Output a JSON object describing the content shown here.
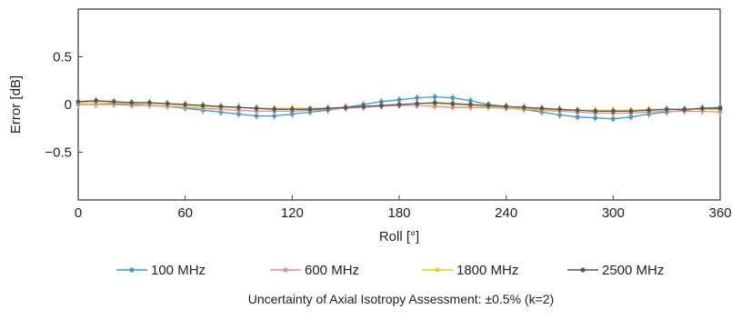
{
  "chart_data": {
    "type": "line",
    "xlabel": "Roll [°]",
    "ylabel": "Error [dB]",
    "xlim": [
      0,
      360
    ],
    "ylim": [
      -1,
      1
    ],
    "xticks": [
      0,
      60,
      120,
      180,
      240,
      300,
      360
    ],
    "xtick_labels": [
      "0",
      "60",
      "120",
      "180",
      "240",
      "300",
      "360"
    ],
    "yticks": [
      0.5,
      0,
      -0.5
    ],
    "ytick_labels": [
      "0.5",
      "0",
      "−0.5"
    ],
    "grid": false,
    "legend_position": "bottom",
    "x": [
      0,
      10,
      20,
      30,
      40,
      50,
      60,
      70,
      80,
      90,
      100,
      110,
      120,
      130,
      140,
      150,
      160,
      170,
      180,
      190,
      200,
      210,
      220,
      230,
      240,
      250,
      260,
      270,
      280,
      290,
      300,
      310,
      320,
      330,
      340,
      350,
      360
    ],
    "series": [
      {
        "name": "100 MHz",
        "color": "#3b9ac9",
        "values": [
          0.0,
          0.0,
          0.01,
          0.0,
          -0.01,
          -0.02,
          -0.04,
          -0.06,
          -0.08,
          -0.1,
          -0.12,
          -0.12,
          -0.1,
          -0.08,
          -0.06,
          -0.03,
          0.0,
          0.03,
          0.05,
          0.07,
          0.08,
          0.07,
          0.04,
          0.0,
          -0.02,
          -0.05,
          -0.08,
          -0.11,
          -0.13,
          -0.14,
          -0.15,
          -0.13,
          -0.1,
          -0.08,
          -0.06,
          -0.04,
          -0.03
        ]
      },
      {
        "name": "600 MHz",
        "color": "#e58a94",
        "values": [
          0.0,
          0.0,
          0.0,
          -0.01,
          -0.01,
          -0.02,
          -0.03,
          -0.04,
          -0.05,
          -0.06,
          -0.07,
          -0.07,
          -0.07,
          -0.06,
          -0.05,
          -0.04,
          -0.03,
          -0.02,
          -0.01,
          -0.01,
          -0.02,
          -0.03,
          -0.03,
          -0.03,
          -0.04,
          -0.05,
          -0.06,
          -0.07,
          -0.08,
          -0.09,
          -0.09,
          -0.09,
          -0.08,
          -0.07,
          -0.07,
          -0.07,
          -0.08
        ]
      },
      {
        "name": "1800 MHz",
        "color": "#e0d21f",
        "values": [
          0.02,
          0.02,
          0.02,
          0.01,
          0.01,
          0.0,
          -0.01,
          -0.02,
          -0.03,
          -0.03,
          -0.04,
          -0.04,
          -0.04,
          -0.04,
          -0.04,
          -0.03,
          -0.02,
          -0.01,
          0.0,
          0.01,
          0.01,
          0.0,
          -0.01,
          -0.02,
          -0.03,
          -0.04,
          -0.05,
          -0.06,
          -0.06,
          -0.06,
          -0.06,
          -0.06,
          -0.05,
          -0.05,
          -0.05,
          -0.05,
          -0.05
        ]
      },
      {
        "name": "2500 MHz",
        "color": "#555566",
        "values": [
          0.03,
          0.04,
          0.03,
          0.02,
          0.02,
          0.01,
          0.0,
          -0.01,
          -0.02,
          -0.03,
          -0.04,
          -0.05,
          -0.05,
          -0.05,
          -0.04,
          -0.03,
          -0.02,
          -0.01,
          0.0,
          0.01,
          0.02,
          0.01,
          0.0,
          -0.01,
          -0.02,
          -0.03,
          -0.04,
          -0.05,
          -0.06,
          -0.07,
          -0.07,
          -0.07,
          -0.06,
          -0.05,
          -0.05,
          -0.04,
          -0.04
        ]
      }
    ],
    "annotation": "Uncertainty of Axial Isotropy Assessment: ±0.5% (k=2)"
  }
}
